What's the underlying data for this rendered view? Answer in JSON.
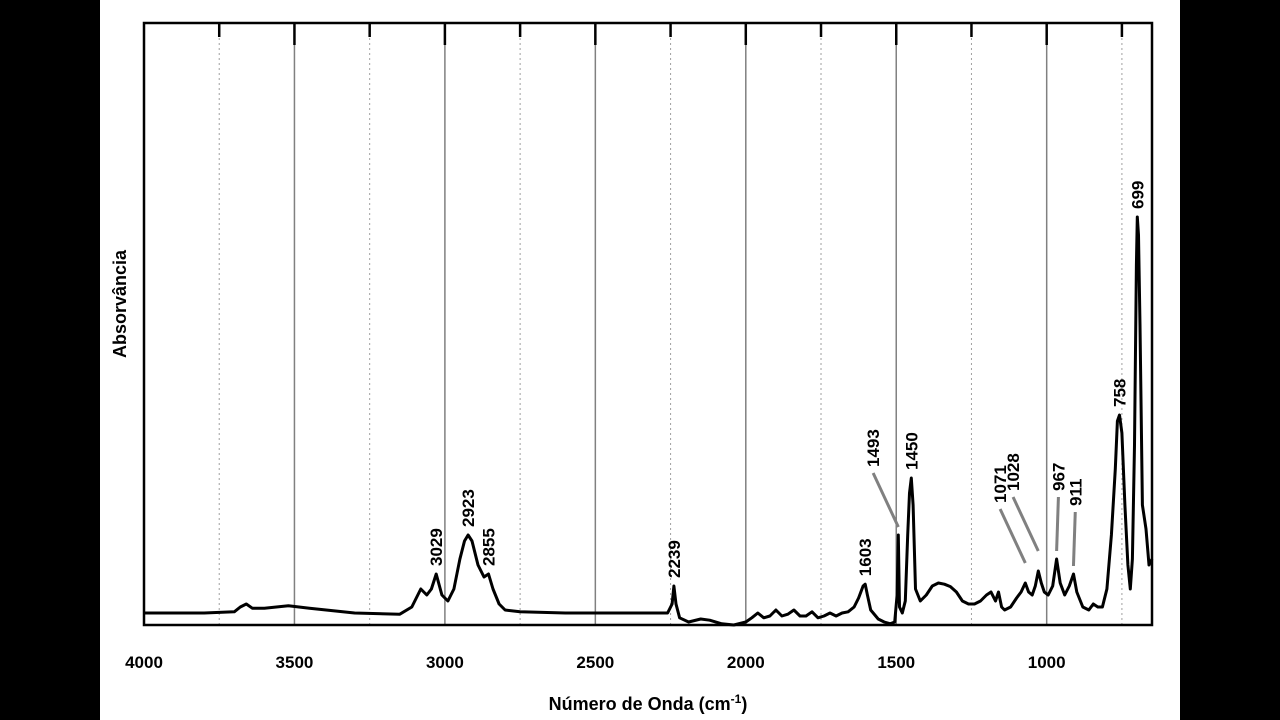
{
  "chart_data": {
    "type": "line",
    "title": "",
    "xlabel": "Número de Onda (cm",
    "xlabel_sup": "-1",
    "xlabel_close": ")",
    "ylabel": "Absorvância",
    "xlim": [
      4000,
      650
    ],
    "ylim": [
      0,
      1
    ],
    "x_reversed": true,
    "x_ticks": [
      4000,
      3500,
      3000,
      2500,
      2000,
      1500,
      1000
    ],
    "x_tick_labels": [
      "4000",
      "3500",
      "3000",
      "2500",
      "2000",
      "1500",
      "1000"
    ],
    "minor_ticks": [
      3750,
      3250,
      2750,
      2250,
      1750,
      1250,
      750
    ],
    "grid": {
      "major": true,
      "minor": true
    },
    "series": [
      {
        "x": [
          4000,
          3900,
          3800,
          3700,
          3680,
          3660,
          3640,
          3600,
          3560,
          3520,
          3450,
          3300,
          3150,
          3110,
          3090,
          3080,
          3060,
          3045,
          3029,
          3010,
          2990,
          2970,
          2950,
          2935,
          2923,
          2910,
          2890,
          2870,
          2855,
          2840,
          2820,
          2800,
          2750,
          2600,
          2400,
          2300,
          2260,
          2245,
          2239,
          2232,
          2220,
          2190,
          2150,
          2120,
          2080,
          2040,
          2000,
          1980,
          1960,
          1940,
          1920,
          1900,
          1880,
          1860,
          1840,
          1820,
          1800,
          1780,
          1760,
          1740,
          1720,
          1700,
          1680,
          1660,
          1640,
          1625,
          1610,
          1603,
          1596,
          1585,
          1560,
          1540,
          1520,
          1505,
          1497,
          1493,
          1489,
          1480,
          1470,
          1462,
          1456,
          1450,
          1444,
          1436,
          1420,
          1400,
          1380,
          1360,
          1340,
          1320,
          1300,
          1280,
          1260,
          1240,
          1220,
          1200,
          1185,
          1170,
          1160,
          1150,
          1140,
          1120,
          1100,
          1085,
          1071,
          1060,
          1048,
          1038,
          1028,
          1018,
          1008,
          995,
          980,
          967,
          955,
          940,
          925,
          911,
          900,
          880,
          860,
          845,
          830,
          815,
          800,
          785,
          772,
          765,
          758,
          750,
          740,
          730,
          722,
          715,
          708,
          702,
          699,
          695,
          690,
          682,
          670,
          660,
          650
        ],
        "y": [
          0.02,
          0.02,
          0.02,
          0.022,
          0.03,
          0.035,
          0.028,
          0.028,
          0.03,
          0.032,
          0.028,
          0.02,
          0.018,
          0.03,
          0.05,
          0.06,
          0.05,
          0.06,
          0.085,
          0.05,
          0.04,
          0.06,
          0.11,
          0.14,
          0.15,
          0.14,
          0.1,
          0.08,
          0.085,
          0.06,
          0.035,
          0.025,
          0.022,
          0.02,
          0.02,
          0.02,
          0.02,
          0.035,
          0.065,
          0.035,
          0.012,
          0.005,
          0.01,
          0.008,
          0.002,
          0.0,
          0.005,
          0.012,
          0.02,
          0.012,
          0.015,
          0.025,
          0.015,
          0.018,
          0.025,
          0.015,
          0.015,
          0.022,
          0.012,
          0.015,
          0.02,
          0.015,
          0.02,
          0.022,
          0.03,
          0.045,
          0.065,
          0.068,
          0.05,
          0.025,
          0.01,
          0.005,
          0.002,
          0.005,
          0.05,
          0.15,
          0.03,
          0.02,
          0.04,
          0.15,
          0.22,
          0.245,
          0.2,
          0.06,
          0.04,
          0.05,
          0.065,
          0.07,
          0.068,
          0.064,
          0.055,
          0.04,
          0.035,
          0.035,
          0.04,
          0.05,
          0.055,
          0.04,
          0.055,
          0.03,
          0.025,
          0.03,
          0.045,
          0.055,
          0.07,
          0.055,
          0.05,
          0.065,
          0.09,
          0.07,
          0.055,
          0.05,
          0.065,
          0.11,
          0.07,
          0.05,
          0.065,
          0.085,
          0.055,
          0.03,
          0.025,
          0.035,
          0.03,
          0.03,
          0.06,
          0.15,
          0.26,
          0.34,
          0.35,
          0.32,
          0.2,
          0.1,
          0.06,
          0.11,
          0.3,
          0.6,
          0.68,
          0.65,
          0.5,
          0.2,
          0.16,
          0.1,
          0.11
        ]
      }
    ],
    "annotations": [
      {
        "text": "3029",
        "x": 3029,
        "y": 0.085,
        "leader": false
      },
      {
        "text": "2923",
        "x": 2923,
        "y": 0.15,
        "leader": false
      },
      {
        "text": "2855",
        "x": 2855,
        "y": 0.085,
        "leader": false
      },
      {
        "text": "2239",
        "x": 2239,
        "y": 0.065,
        "leader": false
      },
      {
        "text": "1603",
        "x": 1603,
        "y": 0.068,
        "leader": false
      },
      {
        "text": "1493",
        "x": 1493,
        "y": 0.15,
        "leader": true
      },
      {
        "text": "1450",
        "x": 1450,
        "y": 0.245,
        "leader": false
      },
      {
        "text": "1071",
        "x": 1071,
        "y": 0.09,
        "leader": true
      },
      {
        "text": "1028",
        "x": 1028,
        "y": 0.11,
        "leader": true
      },
      {
        "text": "967",
        "x": 967,
        "y": 0.11,
        "leader": true
      },
      {
        "text": "911",
        "x": 911,
        "y": 0.085,
        "leader": true
      },
      {
        "text": "758",
        "x": 758,
        "y": 0.35,
        "leader": false
      },
      {
        "text": "699",
        "x": 699,
        "y": 0.68,
        "leader": false
      }
    ],
    "colors": {
      "line": "#000000",
      "major_grid": "#808080",
      "minor_grid": "#a0a0a0",
      "leader": "#808080"
    }
  }
}
